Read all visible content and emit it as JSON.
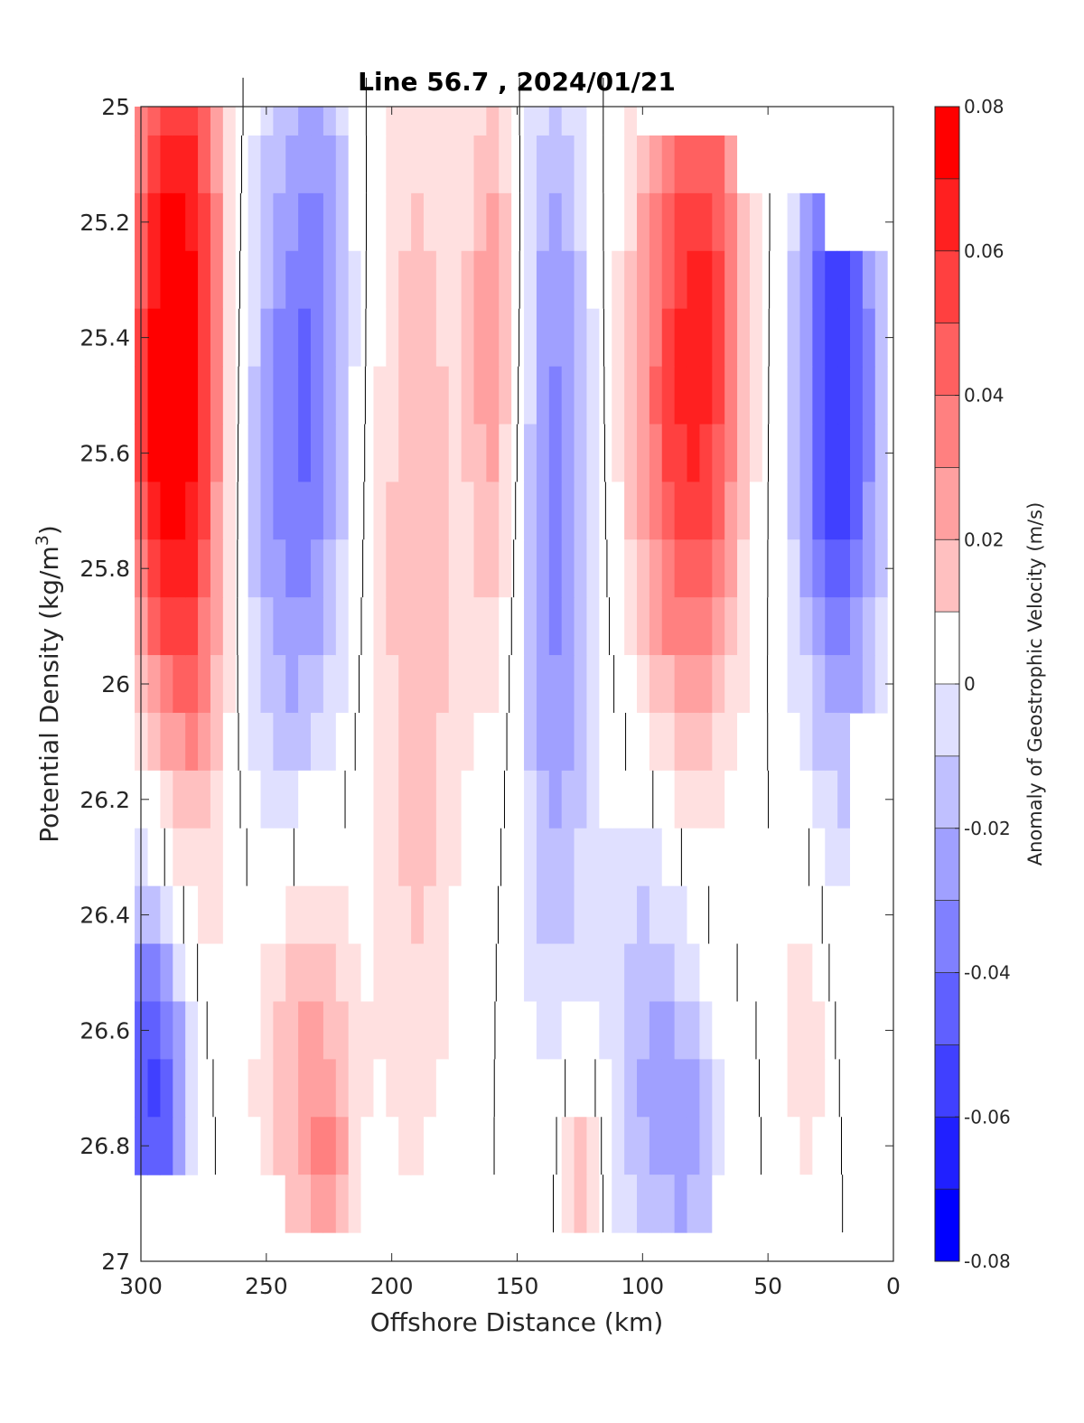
{
  "chart_data": {
    "type": "heatmap",
    "title": "Line 56.7 , 2024/01/21",
    "xlabel": "Offshore Distance (km)",
    "ylabel_main": "Potential Density (kg/m",
    "ylabel_sup": "3",
    "ylabel_end": ")",
    "colorbar_label": "Anomaly of Geostrophic Velocity (m/s)",
    "x_reversed": true,
    "y_reversed": true,
    "xlim": [
      0,
      300
    ],
    "ylim": [
      25,
      27
    ],
    "x_ticks": [
      300,
      250,
      200,
      150,
      100,
      50,
      0
    ],
    "x_tick_labels": [
      "300",
      "250",
      "200",
      "150",
      "100",
      "50",
      "0"
    ],
    "y_ticks": [
      25,
      25.2,
      25.4,
      25.6,
      25.8,
      26,
      26.2,
      26.4,
      26.6,
      26.8,
      27
    ],
    "y_tick_labels": [
      "25",
      "25.2",
      "25.4",
      "25.6",
      "25.8",
      "26",
      "26.2",
      "26.4",
      "26.6",
      "26.8",
      "27"
    ],
    "color_range": [
      -0.08,
      0.08
    ],
    "colorbar_ticks": [
      0.08,
      0.06,
      0.04,
      0.02,
      0,
      -0.02,
      -0.04,
      -0.06,
      -0.08
    ],
    "colorbar_tick_labels": [
      "0.08",
      "0.06",
      "0.04",
      "0.02",
      "0",
      "-0.02",
      "-0.04",
      "-0.06",
      "-0.08"
    ],
    "levels": [
      -0.08,
      -0.07,
      -0.06,
      -0.05,
      -0.04,
      -0.03,
      -0.02,
      -0.01,
      0.01,
      0.02,
      0.03,
      0.04,
      0.05,
      0.06,
      0.07,
      0.08
    ],
    "level_colors": [
      "#0000ff",
      "#2020ff",
      "#4040ff",
      "#6060ff",
      "#8080ff",
      "#a0a0ff",
      "#c0c0ff",
      "#e0e0ff",
      "#ffffff",
      "#ffe0e0",
      "#ffc0c0",
      "#ffa0a0",
      "#ff8080",
      "#ff6060",
      "#ff4040",
      "#ff2020",
      "#ff0000"
    ],
    "zero_contour": true,
    "grid": false,
    "x": [
      5,
      10,
      15,
      20,
      25,
      30,
      35,
      40,
      45,
      50,
      55,
      60,
      65,
      70,
      75,
      80,
      85,
      90,
      95,
      100,
      105,
      110,
      115,
      120,
      125,
      130,
      135,
      140,
      145,
      150,
      155,
      160,
      165,
      170,
      175,
      180,
      185,
      190,
      195,
      200,
      205,
      210,
      215,
      220,
      225,
      230,
      235,
      240,
      245,
      250,
      255,
      260,
      265,
      270,
      275,
      280,
      285,
      290,
      295,
      300
    ],
    "y": [
      25.0,
      25.1,
      25.2,
      25.3,
      25.4,
      25.5,
      25.6,
      25.7,
      25.8,
      25.9,
      26.0,
      26.1,
      26.2,
      26.3,
      26.4,
      26.5,
      26.6,
      26.7,
      26.8,
      26.9
    ],
    "bottom_valid_density": [
      26.0,
      26.0,
      26.0,
      26.9,
      26.9,
      26.9,
      26.9,
      26.9,
      26.9,
      26.8,
      26.8,
      26.8,
      26.8,
      26.8,
      26.9,
      26.9,
      26.9,
      26.9,
      26.9,
      26.9,
      26.9,
      26.9,
      26.9,
      26.9,
      26.9,
      26.9,
      26.9,
      26.8,
      26.8,
      26.8,
      26.8,
      26.8,
      26.8,
      26.8,
      26.8,
      26.8,
      26.8,
      26.8,
      26.8,
      26.9,
      26.9,
      26.9,
      26.9,
      26.9,
      26.9,
      26.9,
      26.9,
      26.9,
      26.8,
      26.8,
      26.8,
      26.8,
      26.8,
      26.8,
      26.8,
      26.8,
      26.8,
      26.8,
      26.8,
      26.8
    ],
    "top_valid_density": [
      25.3,
      25.3,
      25.3,
      25.3,
      25.3,
      25.2,
      25.2,
      25.2,
      25.2,
      25.2,
      25.2,
      25.2,
      25.1,
      25.1,
      25.1,
      25.1,
      25.1,
      25.1,
      25.1,
      25.1,
      25.0,
      25.0,
      25.0,
      25.0,
      25.0,
      25.0,
      25.0,
      25.0,
      25.0,
      25.0,
      25.0,
      25.0,
      25.0,
      25.0,
      25.0,
      25.0,
      25.0,
      25.0,
      25.0,
      25.0,
      25.0,
      25.0,
      25.0,
      25.0,
      25.0,
      25.0,
      25.0,
      25.0,
      25.0,
      25.0,
      25.0,
      25.0,
      25.0,
      25.0,
      25.0,
      25.0,
      25.0,
      25.0,
      25.0,
      25.0
    ],
    "field_components": [
      {
        "x": 290,
        "y": 25.5,
        "sx": 12,
        "sy": 0.55,
        "amp": 0.09
      },
      {
        "x": 275,
        "y": 25.3,
        "sx": 9,
        "sy": 0.7,
        "amp": 0.03
      },
      {
        "x": 240,
        "y": 25.6,
        "sx": 14,
        "sy": 0.5,
        "amp": -0.045
      },
      {
        "x": 228,
        "y": 25.2,
        "sx": 8,
        "sy": 0.4,
        "amp": -0.02
      },
      {
        "x": 190,
        "y": 25.8,
        "sx": 12,
        "sy": 0.7,
        "amp": 0.03
      },
      {
        "x": 160,
        "y": 25.4,
        "sx": 8,
        "sy": 0.4,
        "amp": 0.035
      },
      {
        "x": 135,
        "y": 25.7,
        "sx": 10,
        "sy": 0.6,
        "amp": -0.045
      },
      {
        "x": 85,
        "y": 25.5,
        "sx": 14,
        "sy": 0.5,
        "amp": 0.065
      },
      {
        "x": 70,
        "y": 25.3,
        "sx": 9,
        "sy": 0.4,
        "amp": 0.03
      },
      {
        "x": 22,
        "y": 25.5,
        "sx": 12,
        "sy": 0.45,
        "amp": -0.07
      },
      {
        "x": 295,
        "y": 26.7,
        "sx": 11,
        "sy": 0.25,
        "amp": -0.065
      },
      {
        "x": 235,
        "y": 26.65,
        "sx": 14,
        "sy": 0.3,
        "amp": 0.035
      },
      {
        "x": 225,
        "y": 26.85,
        "sx": 6,
        "sy": 0.15,
        "amp": 0.02
      },
      {
        "x": 95,
        "y": 26.6,
        "sx": 14,
        "sy": 0.35,
        "amp": -0.035
      },
      {
        "x": 80,
        "y": 26.8,
        "sx": 8,
        "sy": 0.15,
        "amp": -0.02
      },
      {
        "x": 125,
        "y": 26.85,
        "sx": 6,
        "sy": 0.15,
        "amp": 0.03
      },
      {
        "x": 35,
        "y": 26.6,
        "sx": 6,
        "sy": 0.25,
        "amp": 0.02
      },
      {
        "x": 295,
        "y": 26.2,
        "sx": 10,
        "sy": 0.3,
        "amp": -0.02
      }
    ]
  }
}
